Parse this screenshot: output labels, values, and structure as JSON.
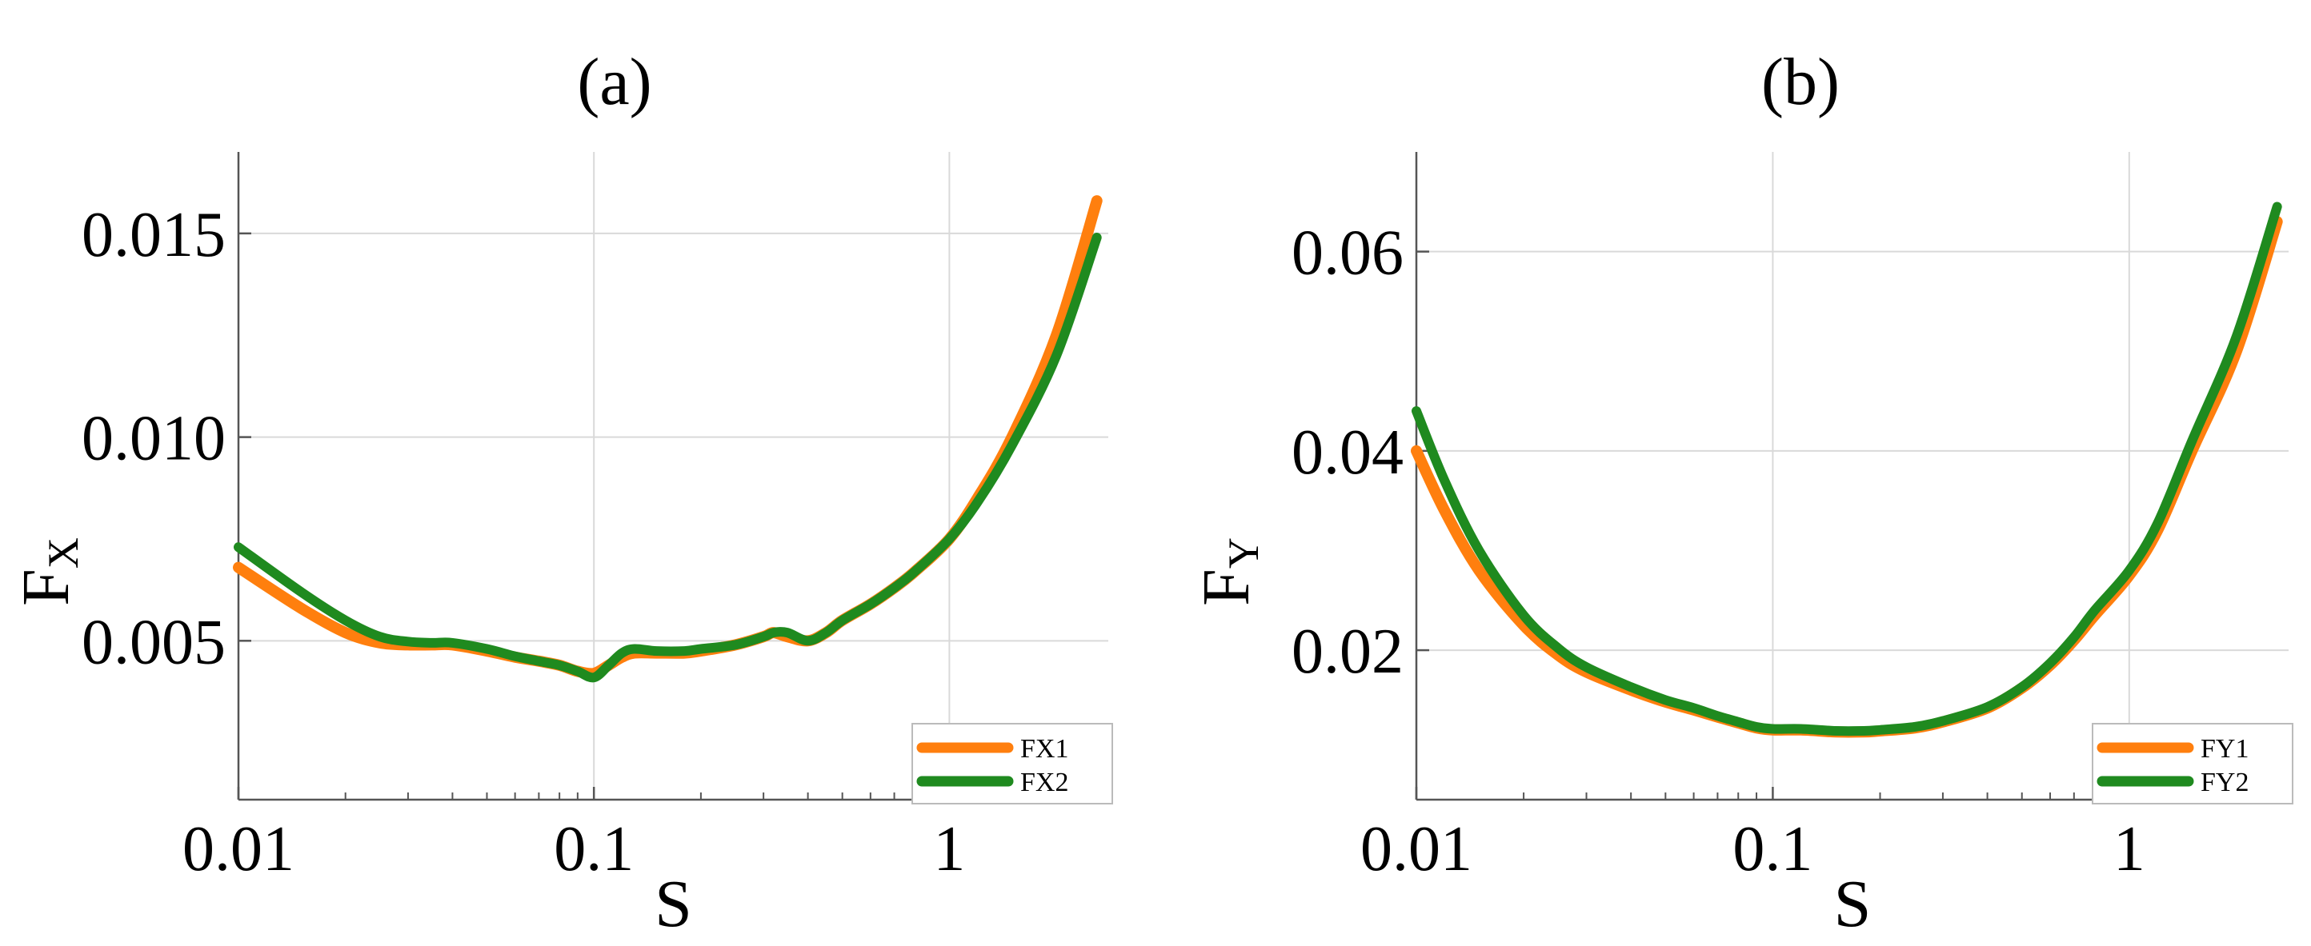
{
  "chart_data": [
    {
      "type": "line",
      "title": "(a)",
      "xlabel": "S",
      "ylabel": "F",
      "ylabel_subscript": "X",
      "x_scale": "log",
      "xlim": [
        0.01,
        2.8
      ],
      "ylim": [
        0.0011,
        0.017
      ],
      "x_ticks": [
        0.01,
        0.1,
        1
      ],
      "x_tick_labels": [
        "0.01",
        "0.1",
        "1"
      ],
      "y_ticks": [
        0.005,
        0.01,
        0.015
      ],
      "y_tick_labels": [
        "0.005",
        "0.010",
        "0.015"
      ],
      "grid": true,
      "legend_position": "bottom-right",
      "series": [
        {
          "name": "FX1",
          "color": "#ff7f0e",
          "x": [
            0.01,
            0.015,
            0.02,
            0.025,
            0.03,
            0.035,
            0.04,
            0.05,
            0.06,
            0.07,
            0.08,
            0.09,
            0.1,
            0.11,
            0.12,
            0.13,
            0.15,
            0.18,
            0.2,
            0.25,
            0.3,
            0.32,
            0.35,
            0.4,
            0.45,
            0.5,
            0.6,
            0.7,
            0.8,
            1.0,
            1.2,
            1.5,
            2.0,
            2.6
          ],
          "y": [
            0.0068,
            0.0058,
            0.0052,
            0.00495,
            0.0049,
            0.0049,
            0.0049,
            0.00475,
            0.0046,
            0.0045,
            0.0044,
            0.00425,
            0.0042,
            0.0044,
            0.0046,
            0.0047,
            0.0047,
            0.0047,
            0.00475,
            0.0049,
            0.0051,
            0.0052,
            0.0051,
            0.005,
            0.0052,
            0.0055,
            0.0059,
            0.0063,
            0.0067,
            0.0075,
            0.0085,
            0.01,
            0.0125,
            0.0158
          ]
        },
        {
          "name": "FX2",
          "color": "#1f8a1f",
          "x": [
            0.01,
            0.015,
            0.02,
            0.025,
            0.03,
            0.035,
            0.04,
            0.05,
            0.06,
            0.07,
            0.08,
            0.09,
            0.1,
            0.11,
            0.12,
            0.13,
            0.15,
            0.18,
            0.2,
            0.25,
            0.3,
            0.32,
            0.35,
            0.4,
            0.45,
            0.5,
            0.6,
            0.7,
            0.8,
            1.0,
            1.2,
            1.5,
            2.0,
            2.6
          ],
          "y": [
            0.0073,
            0.0062,
            0.0055,
            0.0051,
            0.00498,
            0.00495,
            0.00495,
            0.0048,
            0.00462,
            0.0045,
            0.0044,
            0.00425,
            0.0041,
            0.0044,
            0.0047,
            0.0048,
            0.00475,
            0.00475,
            0.0048,
            0.0049,
            0.0051,
            0.0052,
            0.0052,
            0.005,
            0.0052,
            0.0055,
            0.0059,
            0.0063,
            0.0067,
            0.0075,
            0.0084,
            0.0098,
            0.012,
            0.0149
          ]
        }
      ]
    },
    {
      "type": "line",
      "title": "(b)",
      "xlabel": "S",
      "ylabel": "F",
      "ylabel_subscript": "Y",
      "x_scale": "log",
      "xlim": [
        0.01,
        2.8
      ],
      "ylim": [
        0.005,
        0.07
      ],
      "x_ticks": [
        0.01,
        0.1,
        1
      ],
      "x_tick_labels": [
        "0.01",
        "0.1",
        "1"
      ],
      "y_ticks": [
        0.02,
        0.04,
        0.06
      ],
      "y_tick_labels": [
        "0.02",
        "0.04",
        "0.06"
      ],
      "grid": true,
      "legend_position": "bottom-right",
      "series": [
        {
          "name": "FY1",
          "color": "#ff7f0e",
          "x": [
            0.01,
            0.012,
            0.015,
            0.02,
            0.025,
            0.03,
            0.04,
            0.05,
            0.06,
            0.07,
            0.08,
            0.09,
            0.1,
            0.12,
            0.15,
            0.18,
            0.2,
            0.25,
            0.3,
            0.4,
            0.5,
            0.6,
            0.7,
            0.8,
            1.0,
            1.2,
            1.5,
            2.0,
            2.6
          ],
          "y": [
            0.04,
            0.034,
            0.028,
            0.0225,
            0.0195,
            0.0178,
            0.016,
            0.0148,
            0.014,
            0.0133,
            0.0127,
            0.0122,
            0.012,
            0.012,
            0.0118,
            0.0118,
            0.0119,
            0.0122,
            0.0128,
            0.0142,
            0.0162,
            0.0185,
            0.021,
            0.0235,
            0.0275,
            0.032,
            0.04,
            0.05,
            0.063
          ]
        },
        {
          "name": "FY2",
          "color": "#1f8a1f",
          "x": [
            0.01,
            0.012,
            0.015,
            0.02,
            0.025,
            0.03,
            0.04,
            0.05,
            0.06,
            0.07,
            0.08,
            0.09,
            0.1,
            0.12,
            0.15,
            0.18,
            0.2,
            0.25,
            0.3,
            0.4,
            0.5,
            0.6,
            0.7,
            0.8,
            1.0,
            1.2,
            1.5,
            2.0,
            2.6
          ],
          "y": [
            0.044,
            0.037,
            0.03,
            0.0235,
            0.0202,
            0.0183,
            0.0163,
            0.015,
            0.0142,
            0.0134,
            0.0128,
            0.0123,
            0.0121,
            0.0121,
            0.0119,
            0.0119,
            0.012,
            0.0123,
            0.0129,
            0.0143,
            0.0163,
            0.0187,
            0.0213,
            0.024,
            0.028,
            0.0327,
            0.041,
            0.0515,
            0.0645
          ]
        }
      ]
    }
  ]
}
